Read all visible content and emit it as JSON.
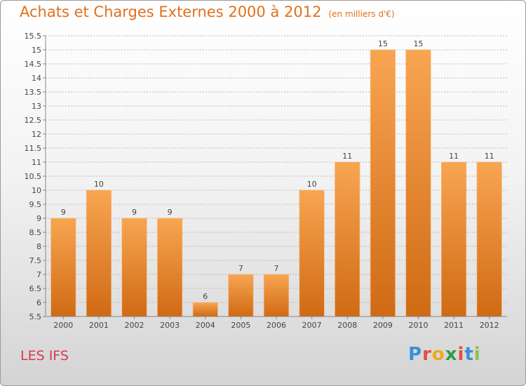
{
  "header": {
    "title": "Achats et Charges Externes 2000 à 2012",
    "subtitle": "(en milliers d'€)"
  },
  "footer": {
    "place": "LES IFS",
    "logo": {
      "text": "Proxiti",
      "letter_colors": [
        "#3a8fd9",
        "#e84c3d",
        "#f2a91c",
        "#2f9c4a",
        "#e84c3d",
        "#3a8fd9",
        "#8bc34a"
      ]
    }
  },
  "colors": {
    "bar_top": "#f8a552",
    "bar_bottom": "#d06a14",
    "title": "#e0701e",
    "place": "#d63a4a",
    "grid": "#bcbcbc"
  },
  "chart_data": {
    "type": "bar",
    "categories": [
      "2000",
      "2001",
      "2002",
      "2003",
      "2004",
      "2005",
      "2006",
      "2007",
      "2008",
      "2009",
      "2010",
      "2011",
      "2012"
    ],
    "values": [
      9,
      10,
      9,
      9,
      6,
      7,
      7,
      10,
      11,
      15,
      15,
      11,
      11
    ],
    "data_labels": [
      "9",
      "10",
      "9",
      "9",
      "6",
      "7",
      "7",
      "10",
      "11",
      "15",
      "15",
      "11",
      "11"
    ],
    "ylim": [
      5.5,
      15.5
    ],
    "y_ticks": [
      "5.5",
      "6",
      "6.5",
      "7",
      "7.5",
      "8",
      "8.5",
      "9",
      "9.5",
      "10",
      "10.5",
      "11",
      "11.5",
      "12",
      "12.5",
      "13",
      "13.5",
      "14",
      "14.5",
      "15",
      "15.5"
    ],
    "grid": true,
    "grid_axis": "y",
    "legend": "none"
  }
}
